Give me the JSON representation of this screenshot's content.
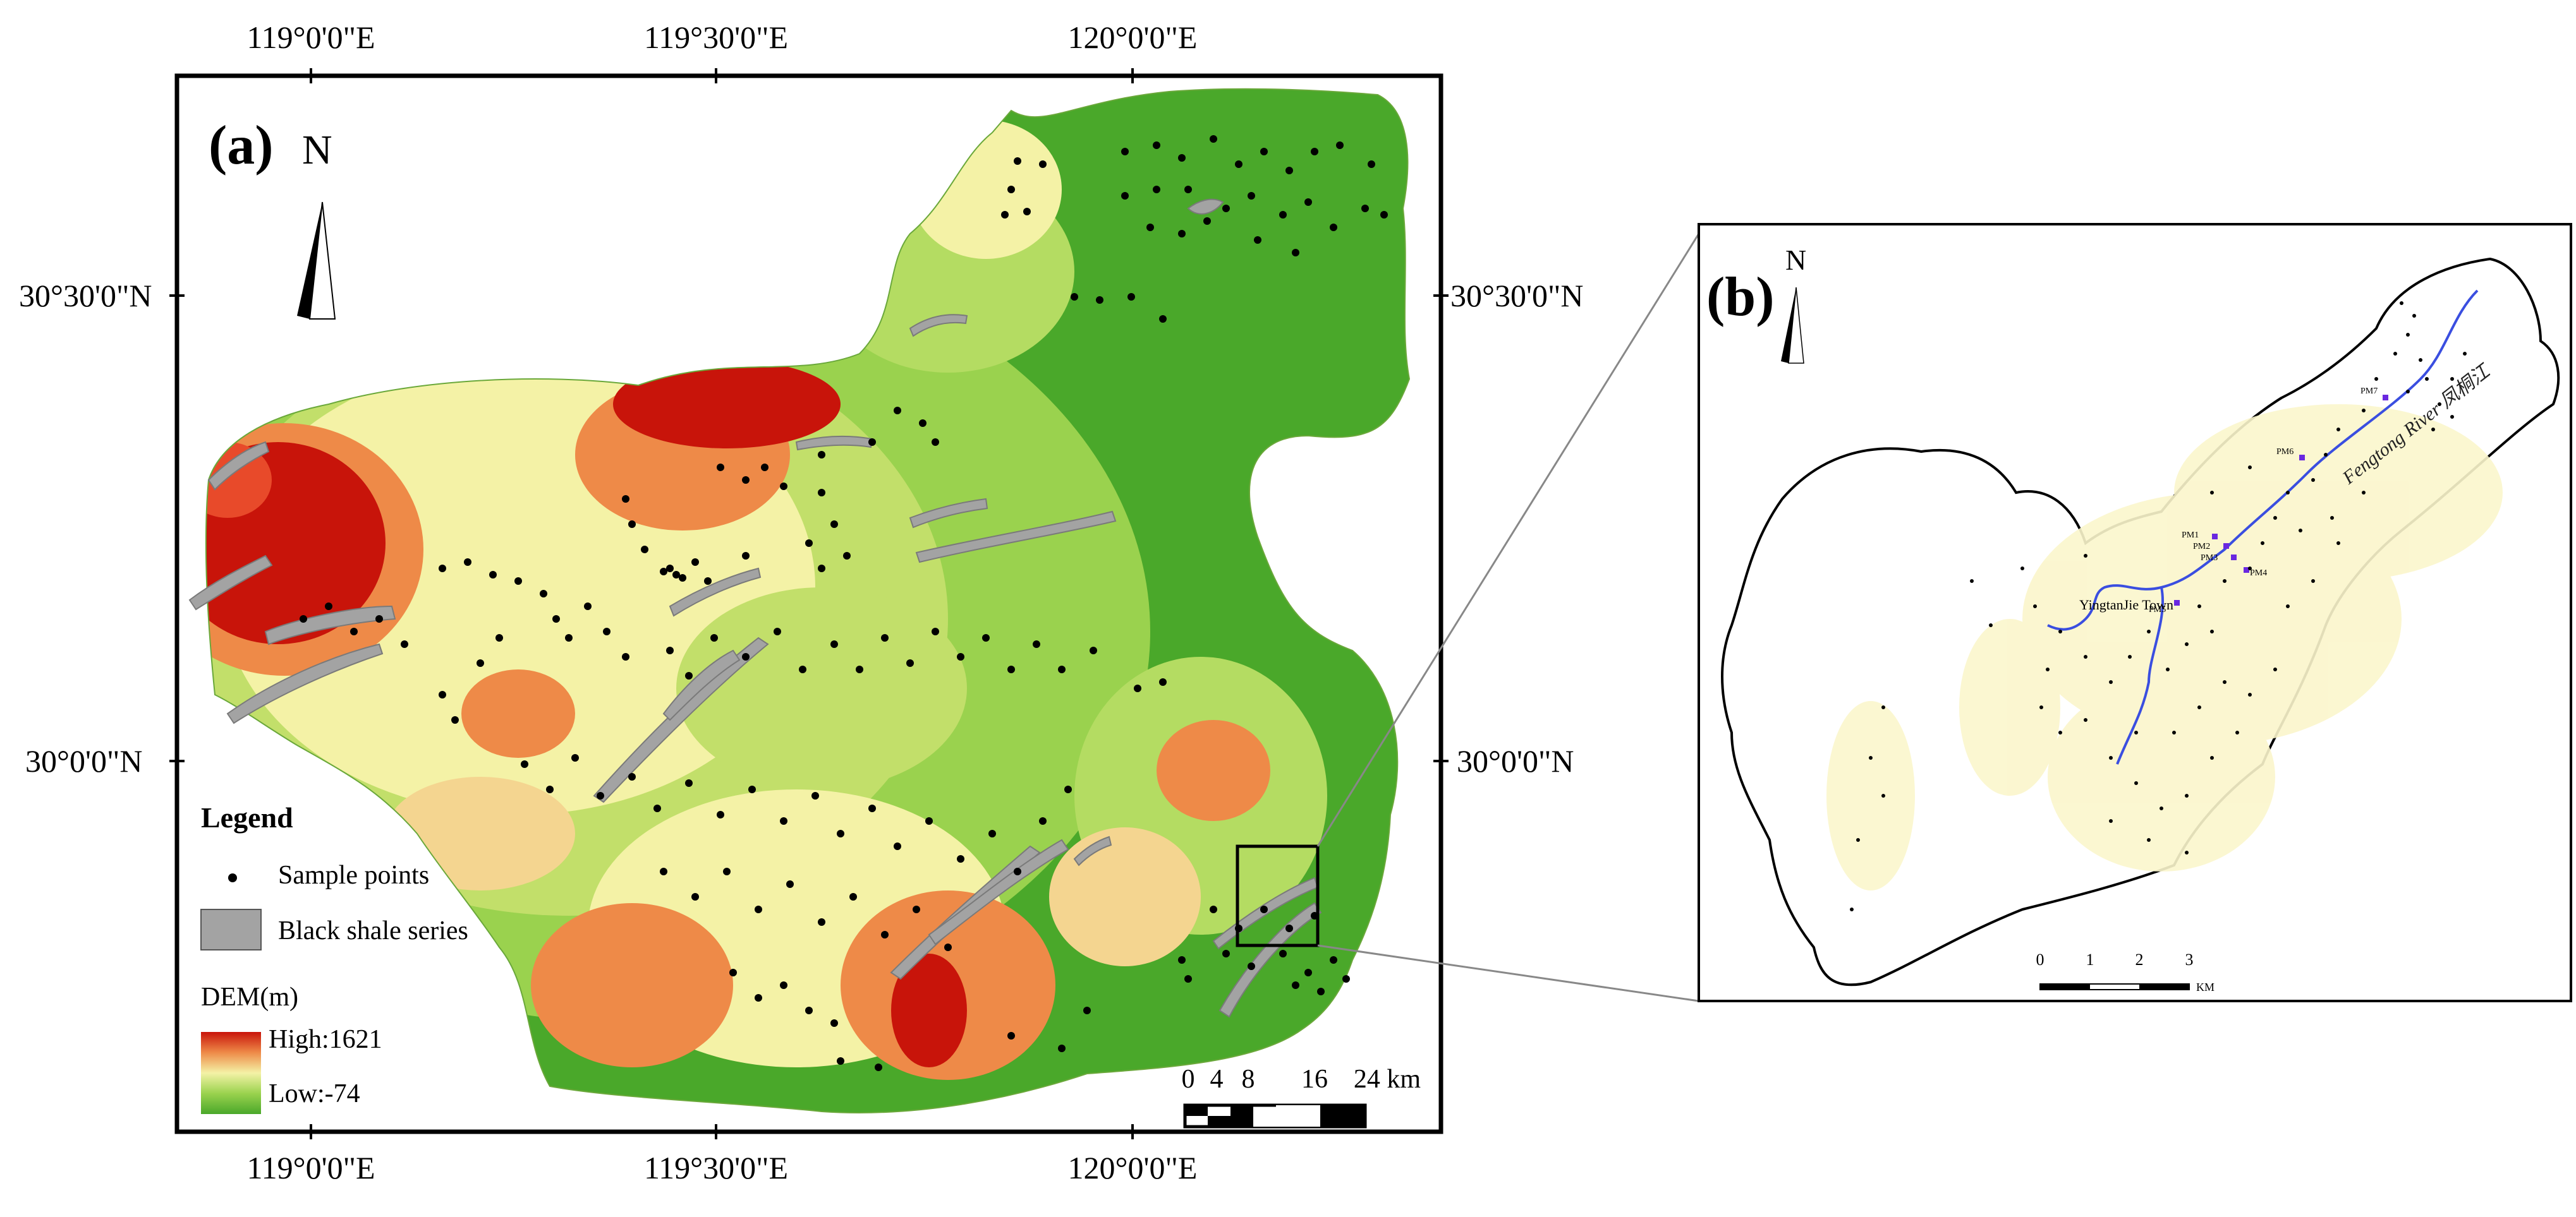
{
  "panel_a": {
    "label": "(a)",
    "north": "N",
    "lon_ticks": [
      "119°0'0\"E",
      "119°30'0\"E",
      "120°0'0\"E"
    ],
    "lat_ticks": [
      "30°30'0\"N",
      "30°0'0\"N"
    ],
    "legend": {
      "title": "Legend",
      "sample_points": "Sample points",
      "black_shale": "Black shale series",
      "dem_title": "DEM(m)",
      "dem_high": "High:1621",
      "dem_low": "Low:-74"
    },
    "scale_ticks": [
      "0",
      "4",
      "8",
      "16",
      "24 km"
    ],
    "colors": {
      "dem_high": "#c8140a",
      "dem_mid_high": "#ee8a48",
      "dem_mid": "#f4f2a6",
      "dem_mid_low": "#9ad24e",
      "dem_low": "#4aa82a",
      "black_shale": "#a3a3a3",
      "sample_point": "#000000"
    }
  },
  "panel_b": {
    "label": "(b)",
    "north": "N",
    "river": "Fengtong River",
    "river_cn": "凤桐江",
    "town": "YingtanJie Town",
    "profiles": [
      "PM1",
      "PM2",
      "PM3",
      "PM4",
      "PM5",
      "PM6",
      "PM7"
    ],
    "scale_ticks": [
      "0",
      "1",
      "2",
      "3"
    ],
    "scale_unit": "KM",
    "colors": {
      "river": "#3a4ee0",
      "land": "#fbf6cc",
      "profile": "#6a28e0"
    }
  }
}
